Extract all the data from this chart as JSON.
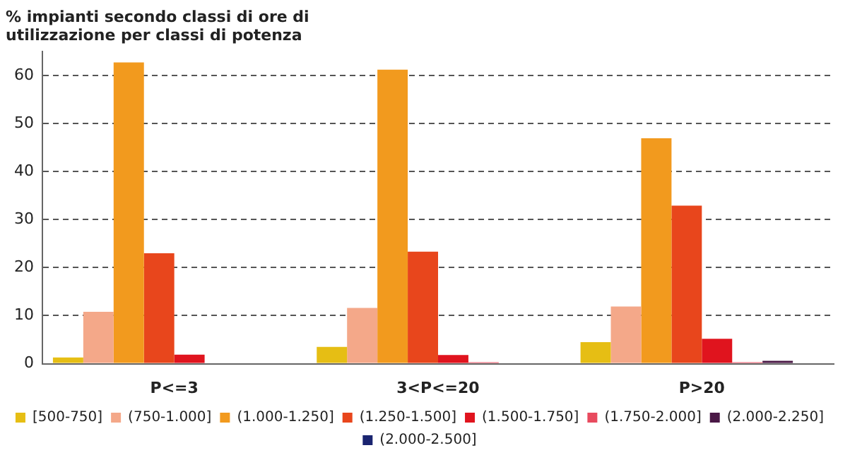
{
  "chart_data": {
    "type": "bar",
    "title": [
      "% impianti secondo classi di ore di",
      "utilizzazione per classi di potenza"
    ],
    "categories": [
      "P<=3",
      "3<P<=20",
      "P>20"
    ],
    "series": [
      {
        "name": "[500-750]",
        "color": "#e6be14",
        "values": [
          1.3,
          3.5,
          4.5
        ]
      },
      {
        "name": "(750-1.000]",
        "color": "#f4a889",
        "values": [
          10.8,
          11.6,
          11.9
        ]
      },
      {
        "name": "(1.000-1.250]",
        "color": "#f29a1e",
        "values": [
          62.7,
          61.2,
          46.9
        ]
      },
      {
        "name": "(1.250-1.500]",
        "color": "#e8461c",
        "values": [
          23.0,
          23.3,
          32.9
        ]
      },
      {
        "name": "(1.500-1.750]",
        "color": "#e0141e",
        "values": [
          1.9,
          1.8,
          5.2
        ]
      },
      {
        "name": "(1.750-2.000]",
        "color": "#e84a5e",
        "values": [
          0,
          0.3,
          0.3
        ]
      },
      {
        "name": "(2.000-2.250]",
        "color": "#4a1846",
        "values": [
          0,
          0,
          0.6
        ]
      },
      {
        "name": "(2.000-2.500]",
        "color": "#1a2470",
        "values": [
          0,
          0,
          0
        ]
      }
    ],
    "ylim": [
      0,
      65
    ],
    "yticks": [
      0,
      10,
      20,
      30,
      40,
      50,
      60
    ],
    "grid": "y",
    "legend": "bottom"
  }
}
